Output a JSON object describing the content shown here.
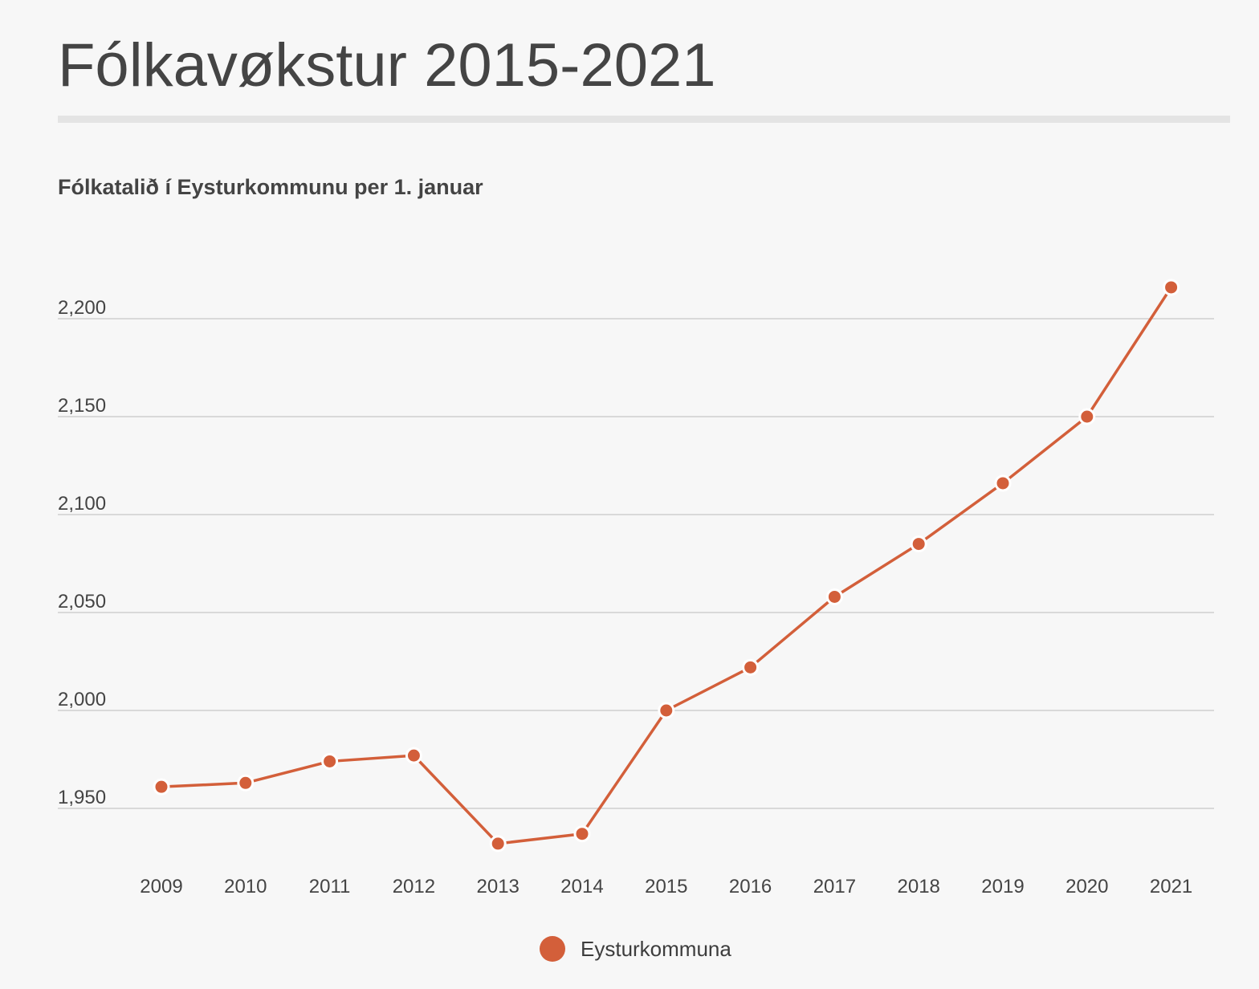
{
  "header": {
    "title": "Fólkavøkstur 2015-2021",
    "subtitle": "Fólkatalið í Eysturkommunu per 1. januar"
  },
  "colors": {
    "series": "#d35f3a",
    "grid": "#cfcfcf",
    "text": "#444444",
    "background": "#f7f7f7"
  },
  "chart_data": {
    "type": "line",
    "title": "Fólkavøkstur 2015-2021",
    "subtitle": "Fólkatalið í Eysturkommunu per 1. januar",
    "xlabel": "",
    "ylabel": "",
    "x": [
      "2009",
      "2010",
      "2011",
      "2012",
      "2013",
      "2014",
      "2015",
      "2016",
      "2017",
      "2018",
      "2019",
      "2020",
      "2021"
    ],
    "series": [
      {
        "name": "Eysturkommuna",
        "values": [
          1961,
          1963,
          1974,
          1977,
          1932,
          1937,
          2000,
          2022,
          2058,
          2085,
          2116,
          2150,
          2216
        ]
      }
    ],
    "yticks": [
      1950,
      2000,
      2050,
      2100,
      2150,
      2200
    ],
    "ytick_labels": [
      "1,950",
      "2,000",
      "2,050",
      "2,100",
      "2,150",
      "2,200"
    ],
    "ylim": [
      1925,
      2225
    ],
    "grid": true,
    "legend": "bottom-center",
    "markers": true
  },
  "legend": {
    "label": "Eysturkommuna"
  }
}
